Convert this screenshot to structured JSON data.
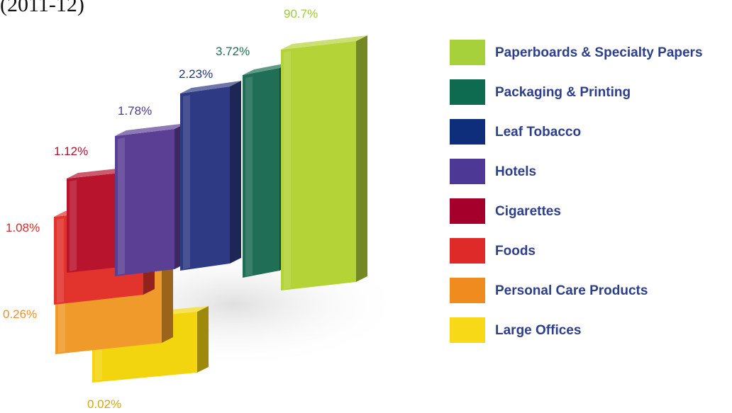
{
  "title": "(2011-12)",
  "chart_data": {
    "type": "bar",
    "categories": [
      "Large Offices",
      "Personal Care Products",
      "Foods",
      "Cigarettes",
      "Hotels",
      "Leaf Tobacco",
      "Packaging & Printing",
      "Paperboards & Specialty Papers"
    ],
    "values": [
      0.02,
      0.26,
      1.08,
      1.12,
      1.78,
      2.23,
      3.72,
      90.7
    ],
    "value_labels": [
      "0.02%",
      "0.26%",
      "1.08%",
      "1.12%",
      "1.78%",
      "2.23%",
      "3.72%",
      "90.7%"
    ],
    "colors": [
      "#f2d40f",
      "#ef9a2a",
      "#e2332d",
      "#b8142e",
      "#5b3f95",
      "#2e3b84",
      "#1f6e55",
      "#b3d336"
    ],
    "label_colors": [
      "#d4a90a",
      "#e8902a",
      "#d42b2b",
      "#b0132f",
      "#4a3a90",
      "#23347e",
      "#1f6e55",
      "#9ccb3b"
    ],
    "legend": [
      {
        "label": "Paperboards & Specialty Papers",
        "color": "#a6d13a"
      },
      {
        "label": "Packaging & Printing",
        "color": "#0f6b4f"
      },
      {
        "label": "Leaf Tobacco",
        "color": "#0e2d7a"
      },
      {
        "label": "Hotels",
        "color": "#4d3995"
      },
      {
        "label": "Cigarettes",
        "color": "#a5002c"
      },
      {
        "label": "Foods",
        "color": "#df2a2a"
      },
      {
        "label": "Personal Care Products",
        "color": "#f08b1f"
      },
      {
        "label": "Large Offices",
        "color": "#f7d917"
      }
    ],
    "legend_position": "right"
  }
}
